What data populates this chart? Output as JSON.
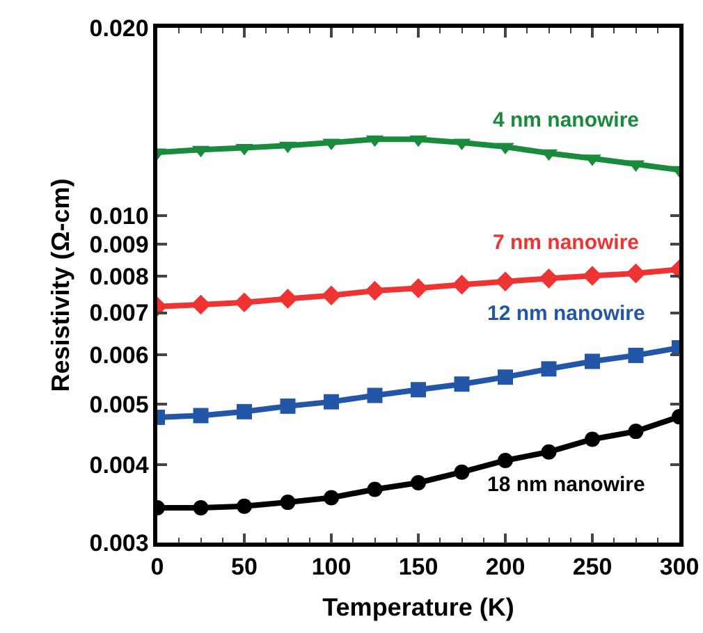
{
  "chart_data": {
    "type": "line",
    "xlabel": "Temperature (K)",
    "ylabel": "Resistivity (Ω-cm)",
    "log": true,
    "grid": false,
    "legend": false,
    "line_style": "solid",
    "x": [
      0,
      25,
      50,
      75,
      100,
      125,
      150,
      175,
      200,
      225,
      250,
      275,
      300
    ],
    "xlim": [
      0,
      300
    ],
    "xticks": [
      0,
      50,
      100,
      150,
      200,
      250,
      300
    ],
    "ylim": [
      0.003,
      0.02
    ],
    "yticks": [
      0.003,
      0.004,
      0.005,
      0.006,
      0.007,
      0.008,
      0.009,
      {
        "value": 0.01,
        "label": "0.010"
      },
      {
        "value": 0.02,
        "label": "0.020"
      }
    ],
    "series": [
      {
        "name": "4 nm nanowire",
        "color": "#1a8a3c",
        "marker": "triangle",
        "values": [
          0.01264,
          0.01276,
          0.01285,
          0.01296,
          0.0131,
          0.01326,
          0.01326,
          0.0131,
          0.0129,
          0.0126,
          0.01236,
          0.0121,
          0.01185
        ]
      },
      {
        "name": "7 nm nanowire",
        "color": "#ee3433",
        "marker": "diamond",
        "values": [
          0.00716,
          0.00721,
          0.00727,
          0.00737,
          0.00746,
          0.00759,
          0.00766,
          0.00776,
          0.00785,
          0.00794,
          0.00802,
          0.00809,
          0.00821
        ]
      },
      {
        "name": "12 nm nanowire",
        "color": "#2456a8",
        "marker": "square",
        "values": [
          0.00476,
          0.00479,
          0.00486,
          0.00496,
          0.00504,
          0.00516,
          0.00527,
          0.00538,
          0.00552,
          0.00569,
          0.00585,
          0.00598,
          0.00615
        ]
      },
      {
        "name": "18 nm nanowire",
        "color": "#000000",
        "marker": "circle",
        "values": [
          0.00341,
          0.00341,
          0.00343,
          0.00348,
          0.00354,
          0.00365,
          0.00374,
          0.00389,
          0.00406,
          0.00419,
          0.00439,
          0.00452,
          0.00477
        ]
      }
    ]
  }
}
